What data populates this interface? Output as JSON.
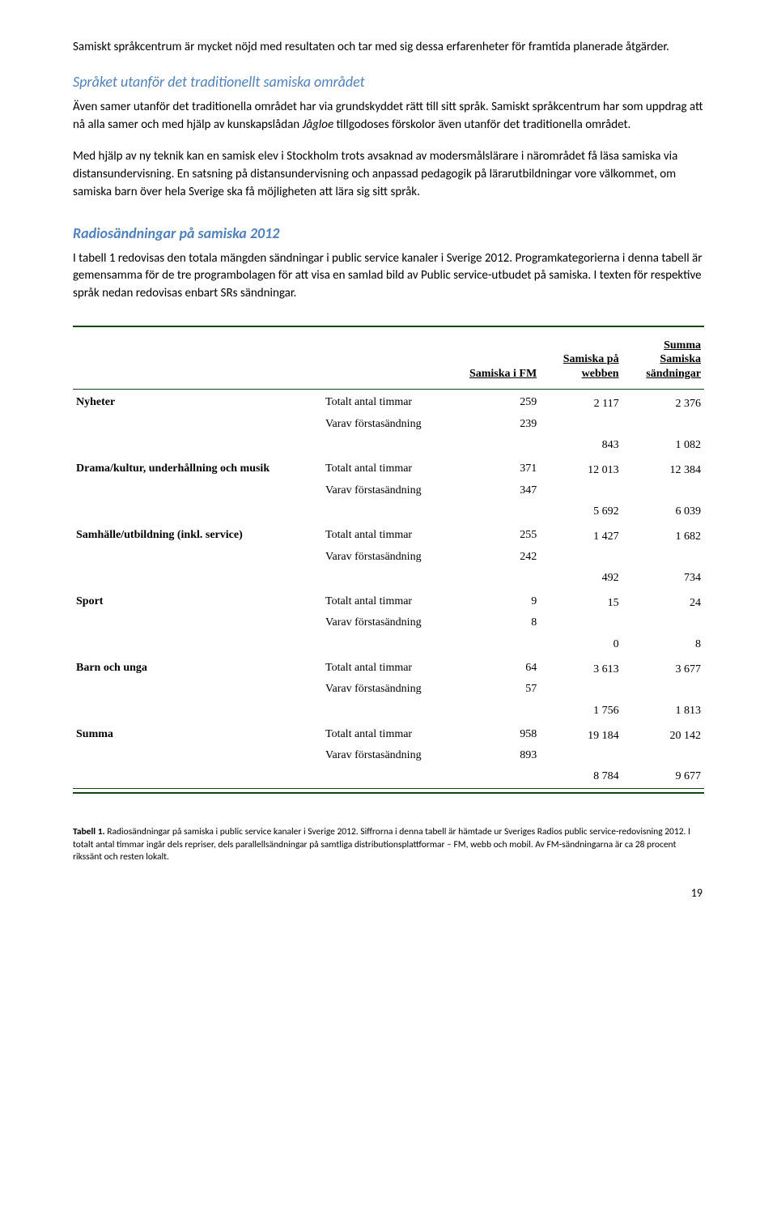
{
  "intro": {
    "p1": "Samiskt språkcentrum är mycket nöjd med resultaten och tar med sig dessa erfarenheter för framtida planerade åtgärder."
  },
  "section1": {
    "heading": "Språket utanför det traditionellt samiska området",
    "p1_a": "Även samer utanför det traditionella området har via grundskyddet rätt till sitt språk. Samiskt språkcentrum har som uppdrag att nå alla samer och med hjälp av kunskapslådan ",
    "p1_i": "Jågloe",
    "p1_b": " tillgodoses förskolor även utanför det traditionella området.",
    "p2": "Med hjälp av ny teknik kan en samisk elev i Stockholm trots avsaknad av modersmålslärare i närområdet få läsa samiska via distansundervisning. En satsning på distansundervisning och anpassad pedagogik på lärarutbildningar vore välkommet, om samiska barn över hela Sverige ska få möjligheten att lära sig sitt språk."
  },
  "section2": {
    "heading": "Radiosändningar på samiska 2012",
    "p1": "I tabell 1 redovisas den totala mängden sändningar i public service kanaler i Sverige 2012. Programkategorierna i denna tabell är gemensamma för de tre programbolagen för att visa en samlad bild av Public service-utbudet på samiska.  I texten för respektive språk nedan redovisas enbart SRs sändningar."
  },
  "table": {
    "headers": {
      "col1": "Samiska i FM",
      "col2": "Samiska på webben",
      "col3_a": "Summa",
      "col3_b": "Samiska sändningar"
    },
    "row_labels": {
      "total": "Totalt antal timmar",
      "varav": "Varav förstasändning"
    },
    "categories": [
      {
        "name": "Nyheter",
        "total_fm": "259",
        "varav_fm": "239",
        "total_web": "2 117",
        "varav_web": "843",
        "total_sum": "2 376",
        "varav_sum": "1 082"
      },
      {
        "name": "Drama/kultur, underhållning och musik",
        "total_fm": "371",
        "varav_fm": "347",
        "total_web": "12 013",
        "varav_web": "5 692",
        "total_sum": "12 384",
        "varav_sum": "6 039"
      },
      {
        "name": "Samhälle/utbildning (inkl. service)",
        "total_fm": "255",
        "varav_fm": "242",
        "total_web": "1 427",
        "varav_web": "492",
        "total_sum": "1 682",
        "varav_sum": "734"
      },
      {
        "name": "Sport",
        "total_fm": "9",
        "varav_fm": "8",
        "total_web": "15",
        "varav_web": "0",
        "total_sum": "24",
        "varav_sum": "8"
      },
      {
        "name": "Barn och unga",
        "total_fm": "64",
        "varav_fm": "57",
        "total_web": "3 613",
        "varav_web": "1 756",
        "total_sum": "3 677",
        "varav_sum": "1 813"
      },
      {
        "name": "Summa",
        "total_fm": "958",
        "varav_fm": "893",
        "total_web": "19 184",
        "varav_web": "8 784",
        "total_sum": "20 142",
        "varav_sum": "9 677"
      }
    ]
  },
  "caption": {
    "bold": "Tabell 1.",
    "text": " Radiosändningar på samiska i public service kanaler i Sverige 2012. Siffrorna i denna tabell är hämtade ur Sveriges Radios public service-redovisning 2012. I totalt antal timmar ingår dels repriser, dels parallellsändningar på samtliga distributionsplattformar – FM, webb och mobil. Av FM-sändningarna är ca 28 procent rikssänt och resten lokalt."
  },
  "page": "19"
}
